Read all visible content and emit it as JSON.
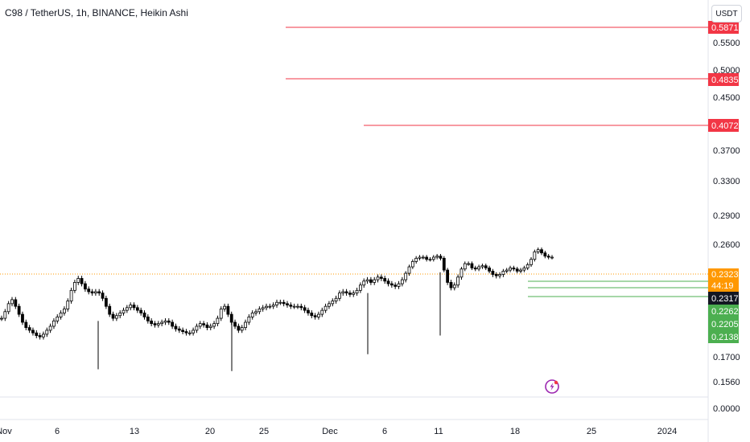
{
  "chart_data": {
    "type": "candlestick",
    "title": "C98 / TetherUS, 1h, BINANCE, Heikin Ashi",
    "currency": "USDT",
    "y_axis_ticks": [
      "0.5500",
      "0.5000",
      "0.4500",
      "0.3700",
      "0.3300",
      "0.2900",
      "0.2600",
      "0.1700",
      "0.1560",
      "0.0000"
    ],
    "x_axis_ticks": [
      "Nov",
      "6",
      "13",
      "20",
      "25",
      "Dec",
      "6",
      "11",
      "18",
      "25",
      "2024"
    ],
    "price_lines": [
      {
        "label": "0.5871",
        "value": 0.5871,
        "color": "#f23645"
      },
      {
        "label": "0.4835",
        "value": 0.4835,
        "color": "#f23645"
      },
      {
        "label": "0.4072",
        "value": 0.4072,
        "color": "#f23645"
      }
    ],
    "support_lines": [
      {
        "label": "0.2262",
        "value": 0.2262,
        "color": "#4caf50"
      },
      {
        "label": "0.2205",
        "value": 0.2205,
        "color": "#4caf50"
      },
      {
        "label": "0.2138",
        "value": 0.2138,
        "color": "#4caf50"
      }
    ],
    "last_price": {
      "label": "0.2323",
      "value": 0.2323,
      "color": "#ff9800",
      "countdown": "44:19"
    },
    "cursor_price": {
      "label": "0.2317",
      "value": 0.2317,
      "color": "#131722"
    },
    "series": [
      {
        "values": [
          0.199,
          0.204,
          0.21,
          0.213,
          0.208,
          0.202,
          0.196,
          0.192,
          0.19,
          0.188,
          0.186,
          0.185,
          0.187,
          0.19,
          0.193,
          0.197,
          0.2,
          0.203,
          0.206,
          0.212,
          0.22,
          0.226,
          0.229,
          0.225,
          0.221,
          0.219,
          0.218,
          0.219,
          0.218,
          0.214,
          0.208,
          0.202,
          0.199,
          0.201,
          0.203,
          0.205,
          0.207,
          0.209,
          0.207,
          0.205,
          0.203,
          0.2,
          0.197,
          0.195,
          0.194,
          0.195,
          0.196,
          0.197,
          0.196,
          0.193,
          0.191,
          0.19,
          0.189,
          0.188,
          0.188,
          0.19,
          0.193,
          0.195,
          0.194,
          0.192,
          0.193,
          0.195,
          0.199,
          0.206,
          0.208,
          0.202,
          0.196,
          0.193,
          0.19,
          0.192,
          0.196,
          0.2,
          0.203,
          0.204,
          0.206,
          0.207,
          0.208,
          0.208,
          0.209,
          0.211,
          0.211,
          0.21,
          0.209,
          0.208,
          0.208,
          0.208,
          0.207,
          0.205,
          0.203,
          0.201,
          0.2,
          0.202,
          0.205,
          0.208,
          0.21,
          0.212,
          0.214,
          0.218,
          0.219,
          0.218,
          0.217,
          0.218,
          0.22,
          0.224,
          0.227,
          0.228,
          0.226,
          0.228,
          0.23,
          0.229,
          0.227,
          0.225,
          0.224,
          0.223,
          0.225,
          0.228,
          0.233,
          0.239,
          0.244,
          0.247,
          0.248,
          0.248,
          0.246,
          0.246,
          0.248,
          0.249,
          0.247,
          0.236,
          0.226,
          0.222,
          0.224,
          0.23,
          0.237,
          0.242,
          0.242,
          0.238,
          0.237,
          0.239,
          0.24,
          0.238,
          0.235,
          0.232,
          0.231,
          0.232,
          0.235,
          0.236,
          0.238,
          0.237,
          0.235,
          0.236,
          0.238,
          0.241,
          0.246,
          0.253,
          0.255,
          0.252,
          0.249,
          0.248,
          0.248
        ]
      }
    ]
  }
}
